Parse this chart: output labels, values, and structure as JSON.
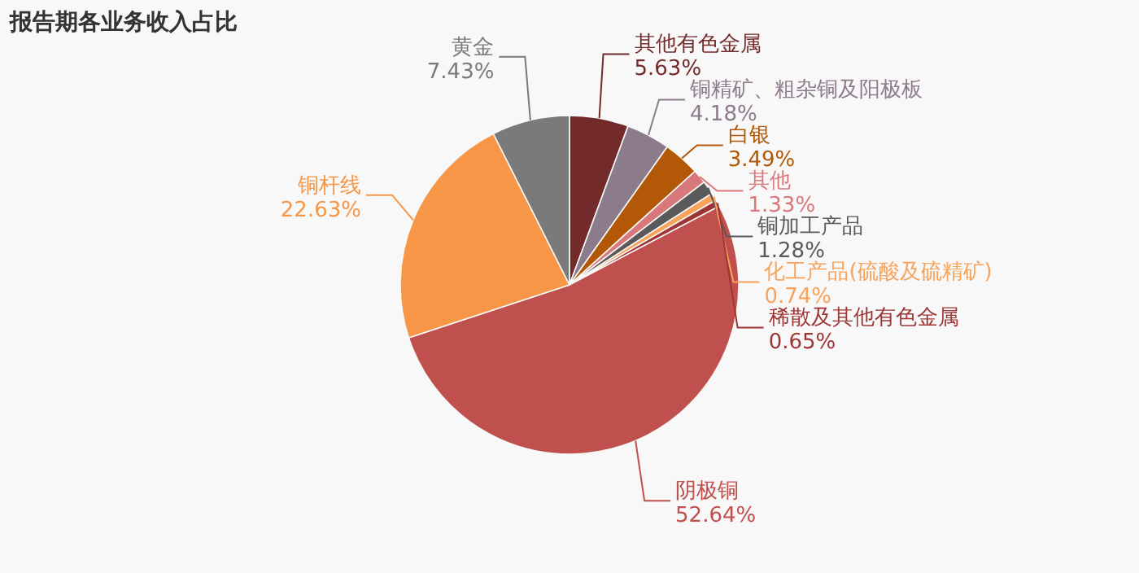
{
  "chart_data": {
    "type": "pie",
    "title": "报告期各业务收入占比",
    "categories": [
      "其他有色金属",
      "铜精矿、粗杂铜及阳极板",
      "白银",
      "其他",
      "铜加工产品",
      "化工产品(硫酸及硫精矿)",
      "稀散及其他有色金属",
      "阴极铜",
      "铜杆线",
      "黄金"
    ],
    "values": [
      5.63,
      4.18,
      3.49,
      1.33,
      1.28,
      0.74,
      0.65,
      52.64,
      22.63,
      7.43
    ],
    "colors": [
      "#722a2a",
      "#8c7b8b",
      "#b35806",
      "#d9787a",
      "#5a5a5a",
      "#f7a35c",
      "#9e3434",
      "#c0504d",
      "#f79646",
      "#7a7a7a"
    ],
    "value_labels": [
      "5.63%",
      "4.18%",
      "3.49%",
      "1.33%",
      "1.28%",
      "0.74%",
      "0.65%",
      "52.64%",
      "22.63%",
      "7.43%"
    ]
  }
}
